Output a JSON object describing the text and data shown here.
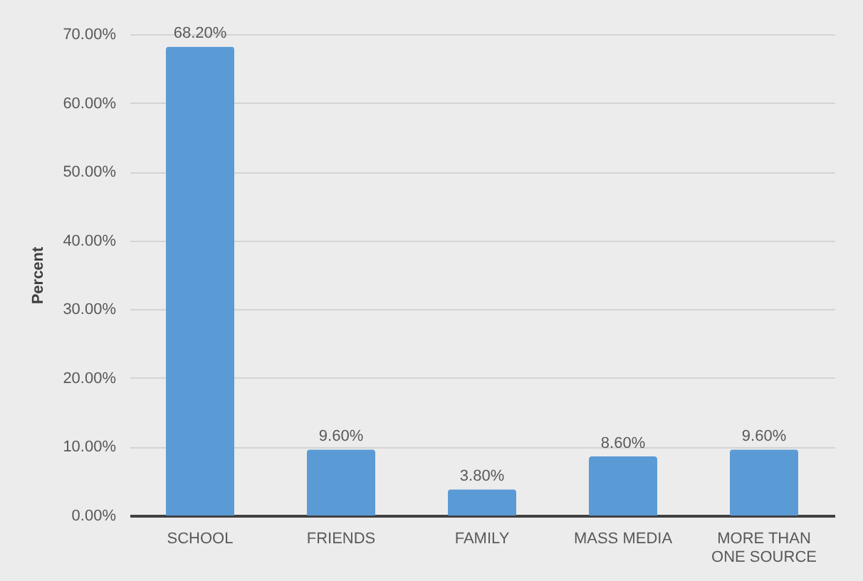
{
  "chart_data": {
    "type": "bar",
    "ylabel": "Percent",
    "categories": [
      "SCHOOL",
      "FRIENDS",
      "FAMILY",
      "MASS MEDIA",
      "MORE THAN ONE SOURCE"
    ],
    "values": [
      68.2,
      9.6,
      3.8,
      8.6,
      9.6
    ],
    "value_labels": [
      "68.20%",
      "9.60%",
      "3.80%",
      "8.60%",
      "9.60%"
    ],
    "color": "#5b9bd5",
    "ylim": [
      0,
      70
    ],
    "yticks": [
      {
        "value": 0,
        "label": "0.00%"
      },
      {
        "value": 10,
        "label": "10.00%"
      },
      {
        "value": 20,
        "label": "20.00%"
      },
      {
        "value": 30,
        "label": "30.00%"
      },
      {
        "value": 40,
        "label": "40.00%"
      },
      {
        "value": 50,
        "label": "50.00%"
      },
      {
        "value": 60,
        "label": "60.00%"
      },
      {
        "value": 70,
        "label": "70.00%"
      }
    ],
    "grid": "y"
  }
}
